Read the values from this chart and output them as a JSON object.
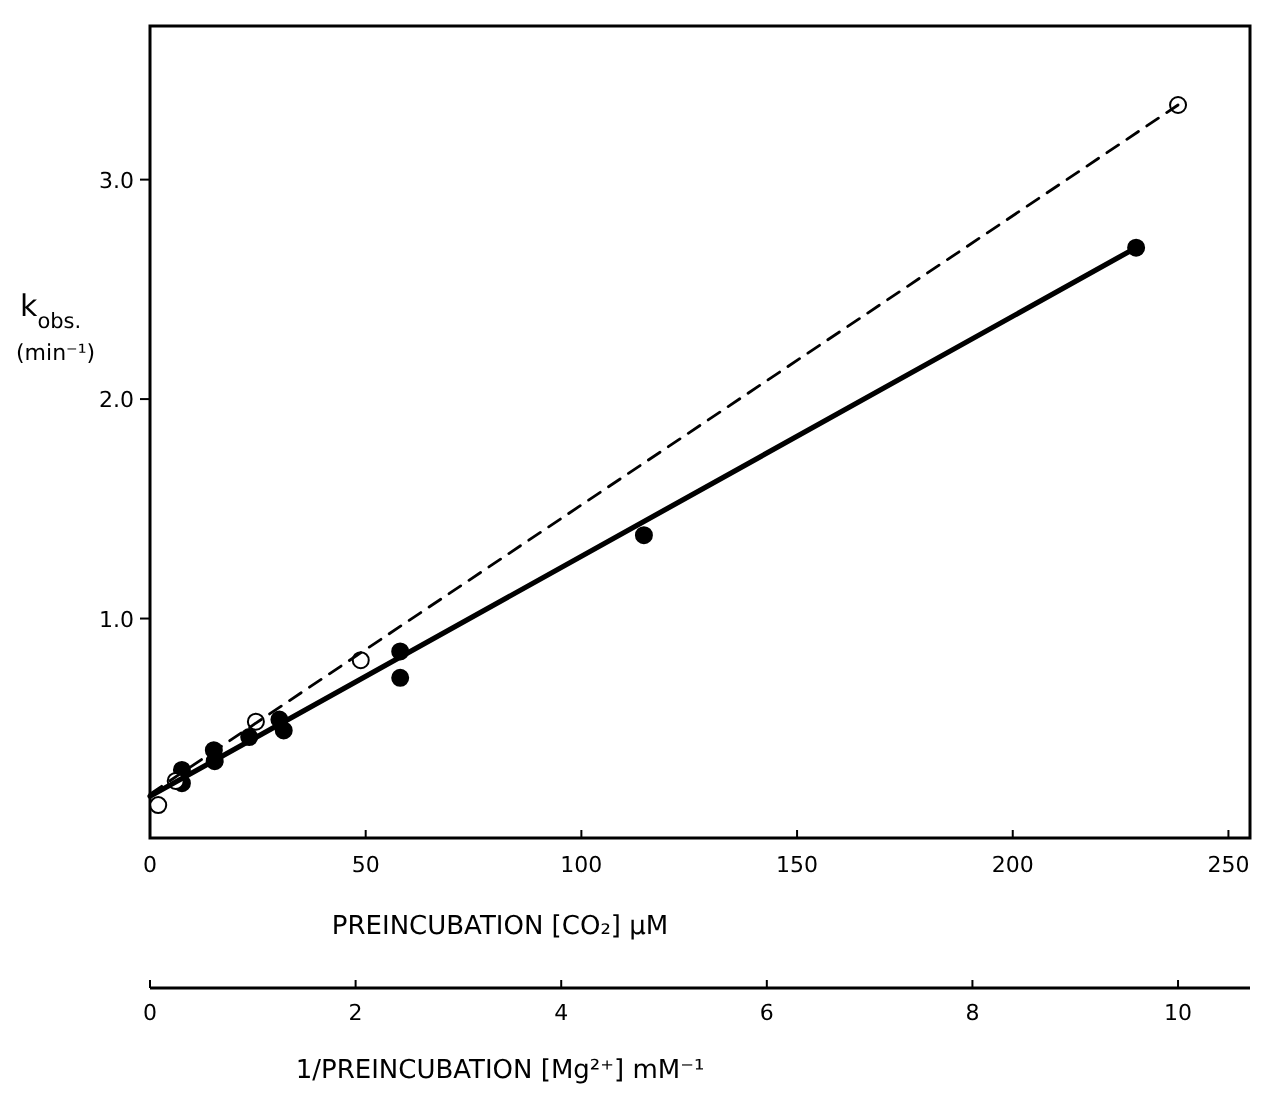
{
  "chart_data": {
    "type": "scatter",
    "xlabel": "PREINCUBATION [CO₂] μM",
    "ylabel": "k$_{obs.}$ (min⁻¹)",
    "x2label": "1/PREINCUBATION [Mg²⁺] mM⁻¹",
    "xlim": [
      0,
      255
    ],
    "xticks": [
      0,
      50,
      100,
      150,
      200,
      250
    ],
    "x2lim": [
      0,
      10.7
    ],
    "x2ticks": [
      0,
      2,
      4,
      6,
      8,
      10
    ],
    "ylim": [
      0,
      3.7
    ],
    "yticks": [
      {
        "value": 1,
        "label": "1.0"
      },
      {
        "value": 2,
        "label": "2.0"
      },
      {
        "value": 3,
        "label": "3.0"
      }
    ],
    "grid": false,
    "marker": "circle",
    "series": [
      {
        "color": "#000000",
        "x": [
          7.4,
          7.4,
          14.8,
          15,
          23,
          30,
          31,
          58,
          58,
          114.5,
          228.6
        ],
        "values": [
          0.31,
          0.25,
          0.4,
          0.35,
          0.46,
          0.54,
          0.49,
          0.85,
          0.73,
          1.38,
          2.69
        ]
      },
      {
        "axis": "x2",
        "color": "#ffffff",
        "x": [
          0.08,
          0.25,
          1.03,
          2.05,
          10
        ],
        "values": [
          0.15,
          0.26,
          0.53,
          0.81,
          3.34
        ]
      },
      {
        "type": "line",
        "color": "#000000",
        "line_style": "solid",
        "marker": "none",
        "x": [
          0,
          228.6
        ],
        "values": [
          0.19,
          2.69
        ]
      },
      {
        "type": "line",
        "axis": "x2",
        "color": "#000000",
        "line_style": "dashed",
        "marker": "none",
        "x": [
          0,
          10
        ],
        "values": [
          0.2,
          3.34
        ]
      }
    ]
  }
}
